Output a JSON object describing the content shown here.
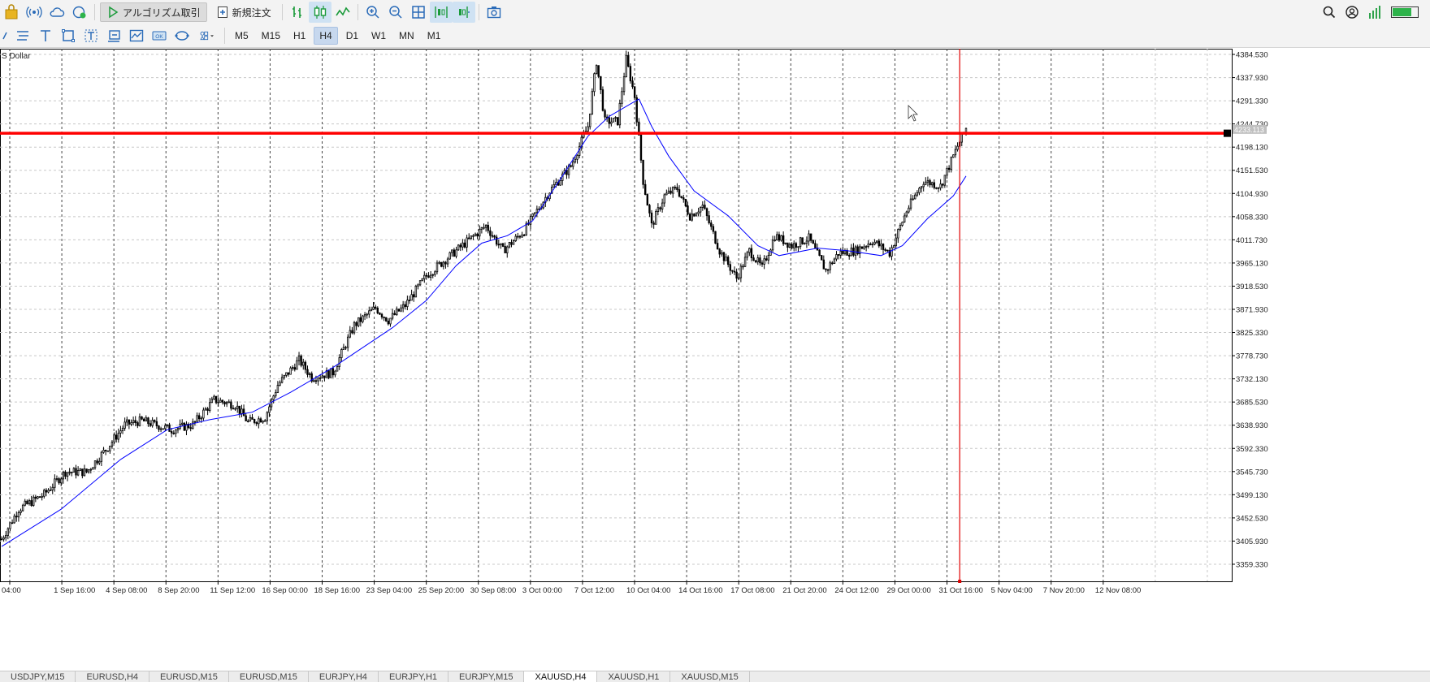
{
  "toolbar": {
    "algo_trading_label": "アルゴリズム取引",
    "new_order_label": "新規注文",
    "battery_level": 0.75,
    "battery_color": "#2db34a"
  },
  "timeframes": [
    {
      "label": "M5",
      "active": false
    },
    {
      "label": "M15",
      "active": false
    },
    {
      "label": "H1",
      "active": false
    },
    {
      "label": "H4",
      "active": true
    },
    {
      "label": "D1",
      "active": false
    },
    {
      "label": "W1",
      "active": false
    },
    {
      "label": "MN",
      "active": false
    },
    {
      "label": "M1",
      "active": false
    }
  ],
  "chart": {
    "symbol_desc": "S Dollar",
    "current_price_label": "4233.113",
    "colors": {
      "candle": "#000000",
      "ma_line": "#0000ff",
      "hline": "#ff0000",
      "vline": "#e00000",
      "grid": "#c8c8c8"
    }
  },
  "chart_data": {
    "type": "candlestick",
    "price_axis_labels": [
      "4384.530",
      "4337.930",
      "4291.330",
      "4244.730",
      "4198.130",
      "4151.530",
      "4104.930",
      "4058.330",
      "4011.730",
      "3965.130",
      "3918.530",
      "3871.930",
      "3825.330",
      "3778.730",
      "3732.130",
      "3685.530",
      "3638.930",
      "3592.330",
      "3545.730",
      "3499.130",
      "3452.530",
      "3405.930",
      "3359.330"
    ],
    "ylim": [
      3325,
      4396
    ],
    "time_axis_labels": [
      "04:00",
      "1 Sep 16:00",
      "4 Sep 08:00",
      "8 Sep 20:00",
      "11 Sep 12:00",
      "16 Sep 00:00",
      "18 Sep 16:00",
      "23 Sep 04:00",
      "25 Sep 20:00",
      "30 Sep 08:00",
      "3 Oct 00:00",
      "7 Oct 12:00",
      "10 Oct 04:00",
      "14 Oct 16:00",
      "17 Oct 08:00",
      "21 Oct 20:00",
      "24 Oct 12:00",
      "29 Oct 00:00",
      "31 Oct 16:00",
      "5 Nov 04:00",
      "7 Nov 20:00",
      "12 Nov 08:00"
    ],
    "horizontal_line_price": 4226,
    "close_path": [
      [
        0,
        3410
      ],
      [
        8,
        3470
      ],
      [
        20,
        3500
      ],
      [
        30,
        3545
      ],
      [
        40,
        3545
      ],
      [
        50,
        3595
      ],
      [
        58,
        3640
      ],
      [
        66,
        3648
      ],
      [
        80,
        3630
      ],
      [
        90,
        3640
      ],
      [
        100,
        3690
      ],
      [
        110,
        3680
      ],
      [
        116,
        3645
      ],
      [
        124,
        3655
      ],
      [
        130,
        3720
      ],
      [
        140,
        3770
      ],
      [
        146,
        3735
      ],
      [
        156,
        3745
      ],
      [
        166,
        3840
      ],
      [
        176,
        3875
      ],
      [
        182,
        3850
      ],
      [
        190,
        3880
      ],
      [
        200,
        3940
      ],
      [
        214,
        3990
      ],
      [
        228,
        4040
      ],
      [
        236,
        3990
      ],
      [
        246,
        4030
      ],
      [
        258,
        4110
      ],
      [
        268,
        4160
      ],
      [
        276,
        4240
      ],
      [
        280,
        4370
      ],
      [
        284,
        4250
      ],
      [
        290,
        4250
      ],
      [
        294,
        4375
      ],
      [
        298,
        4300
      ],
      [
        302,
        4130
      ],
      [
        306,
        4040
      ],
      [
        312,
        4100
      ],
      [
        318,
        4115
      ],
      [
        324,
        4060
      ],
      [
        330,
        4080
      ],
      [
        338,
        3990
      ],
      [
        346,
        3935
      ],
      [
        352,
        3990
      ],
      [
        358,
        3955
      ],
      [
        364,
        4020
      ],
      [
        372,
        4000
      ],
      [
        380,
        4015
      ],
      [
        388,
        3950
      ],
      [
        394,
        3985
      ],
      [
        402,
        3990
      ],
      [
        410,
        4010
      ],
      [
        418,
        3985
      ],
      [
        426,
        4070
      ],
      [
        434,
        4130
      ],
      [
        442,
        4120
      ],
      [
        450,
        4200
      ],
      [
        454,
        4236
      ]
    ],
    "ma_path": [
      [
        0,
        3395
      ],
      [
        28,
        3470
      ],
      [
        56,
        3570
      ],
      [
        78,
        3630
      ],
      [
        98,
        3650
      ],
      [
        118,
        3665
      ],
      [
        136,
        3705
      ],
      [
        156,
        3755
      ],
      [
        170,
        3795
      ],
      [
        184,
        3835
      ],
      [
        200,
        3890
      ],
      [
        214,
        3960
      ],
      [
        226,
        4005
      ],
      [
        238,
        4020
      ],
      [
        250,
        4050
      ],
      [
        264,
        4140
      ],
      [
        276,
        4220
      ],
      [
        286,
        4260
      ],
      [
        294,
        4280
      ],
      [
        300,
        4295
      ],
      [
        306,
        4240
      ],
      [
        314,
        4180
      ],
      [
        326,
        4110
      ],
      [
        342,
        4060
      ],
      [
        356,
        4000
      ],
      [
        366,
        3980
      ],
      [
        384,
        3995
      ],
      [
        398,
        3990
      ],
      [
        414,
        3980
      ],
      [
        424,
        4000
      ],
      [
        436,
        4055
      ],
      [
        448,
        4100
      ],
      [
        454,
        4140
      ]
    ]
  },
  "tabs": [
    {
      "label": "USDJPY,M15",
      "active": false
    },
    {
      "label": "EURUSD,H4",
      "active": false
    },
    {
      "label": "EURUSD,M15",
      "active": false
    },
    {
      "label": "EURUSD,M15",
      "active": false
    },
    {
      "label": "EURJPY,H4",
      "active": false
    },
    {
      "label": "EURJPY,H1",
      "active": false
    },
    {
      "label": "EURJPY,M15",
      "active": false
    },
    {
      "label": "XAUUSD,H4",
      "active": true
    },
    {
      "label": "XAUUSD,H1",
      "active": false
    },
    {
      "label": "XAUUSD,M15",
      "active": false
    }
  ]
}
